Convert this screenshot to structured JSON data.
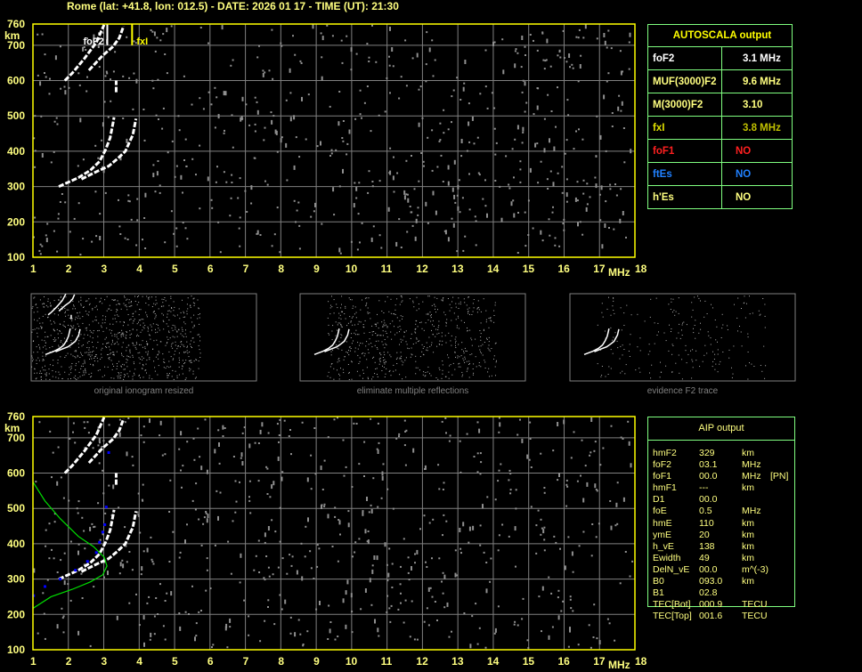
{
  "header": {
    "title": "Rome (lat: +41.8, lon: 012.5) - DATE: 2026 01 17 - TIME (UT): 21:30"
  },
  "autoscala": {
    "title": "AUTOSCALA output",
    "rows": [
      {
        "label": "foF2",
        "value": "3.1 MHz",
        "label_color": "#ffffff",
        "value_color": "#ffffff"
      },
      {
        "label": "MUF(3000)F2",
        "value": "9.6 MHz",
        "label_color": "#ffff80",
        "value_color": "#ffff80"
      },
      {
        "label": "M(3000)F2",
        "value": "3.10",
        "label_color": "#ffff80",
        "value_color": "#ffff80"
      },
      {
        "label": "fxI",
        "value": "3.8 MHz",
        "label_color": "#e0e000",
        "value_color": "#c0c000"
      },
      {
        "label": "foF1",
        "value": "NO",
        "label_color": "#ff2020",
        "value_color": "#ff2020"
      },
      {
        "label": "ftEs",
        "value": "NO",
        "label_color": "#2080ff",
        "value_color": "#2080ff"
      },
      {
        "label": "h'Es",
        "value": "NO",
        "label_color": "#ffff80",
        "value_color": "#ffff80"
      }
    ]
  },
  "aip": {
    "title": "AIP output",
    "rows": [
      [
        "hmF2",
        "329",
        "km",
        ""
      ],
      [
        "foF2",
        "03.1",
        "MHz",
        ""
      ],
      [
        "foF1",
        "00.0",
        "MHz",
        "[PN]"
      ],
      [
        "hmF1",
        "---",
        "km",
        ""
      ],
      [
        "D1",
        "00.0",
        "",
        ""
      ],
      [
        "foE",
        "0.5",
        "MHz",
        ""
      ],
      [
        "hmE",
        "110",
        "km",
        ""
      ],
      [
        "ymE",
        "20",
        "km",
        ""
      ],
      [
        "h_vE",
        "138",
        "km",
        ""
      ],
      [
        "Ewidth",
        "49",
        "km",
        ""
      ],
      [
        "DelN_vE",
        "00.0",
        "m^(-3)",
        ""
      ],
      [
        "B0",
        "093.0",
        "km",
        ""
      ],
      [
        "B1",
        "02.8",
        "",
        ""
      ],
      [
        "TEC[Bot]",
        "000.9",
        "TECU",
        ""
      ],
      [
        "TEC[Top]",
        "001.6",
        "TECU",
        ""
      ]
    ]
  },
  "thumbnails": [
    {
      "caption": "original ionogram resized"
    },
    {
      "caption": "eliminate multiple reflections"
    },
    {
      "caption": "evidence F2 trace"
    }
  ],
  "colors": {
    "axis": "#ffff00",
    "grid": "#808080",
    "trace": "#ffffff",
    "noise": "#909090",
    "profile": "#00e000",
    "fit": "#0000ff",
    "fxI": "#ffff00"
  },
  "chart_data": [
    {
      "type": "scatter",
      "xlabel": "MHz",
      "ylabel": "km",
      "xlim": [
        1,
        18
      ],
      "ylim": [
        100,
        760
      ],
      "xticks": [
        "1",
        "2",
        "3",
        "4",
        "5",
        "6",
        "7",
        "8",
        "9",
        "10",
        "11",
        "12",
        "13",
        "14",
        "15",
        "16",
        "17",
        "18"
      ],
      "yticks": [
        "100",
        "200",
        "300",
        "400",
        "500",
        "600",
        "700",
        "760"
      ],
      "grid": true,
      "annotations": [
        {
          "text": "foF2",
          "x": 3.1
        },
        {
          "text": "fxI",
          "x": 3.8
        }
      ],
      "traces": [
        {
          "points": [
            [
              1.73,
              300
            ],
            [
              2.28,
              325
            ],
            [
              2.62,
              346
            ],
            [
              2.88,
              371
            ],
            [
              3.05,
              404
            ],
            [
              3.18,
              438
            ],
            [
              3.26,
              479
            ],
            [
              3.29,
              496
            ]
          ]
        },
        {
          "points": [
            [
              2.37,
              321
            ],
            [
              2.79,
              342
            ],
            [
              3.14,
              358
            ],
            [
              3.39,
              379
            ],
            [
              3.61,
              400
            ],
            [
              3.74,
              429
            ],
            [
              3.82,
              446
            ],
            [
              3.91,
              492
            ]
          ]
        },
        {
          "points": [
            [
              1.9,
              600
            ],
            [
              2.11,
              621
            ],
            [
              2.45,
              662
            ],
            [
              2.79,
              708
            ],
            [
              3.01,
              758
            ]
          ]
        },
        {
          "points": [
            [
              2.58,
              629
            ],
            [
              2.97,
              671
            ],
            [
              3.26,
              696
            ],
            [
              3.44,
              721
            ],
            [
              3.56,
              754
            ]
          ]
        },
        {
          "points": [
            [
              3.35,
              567
            ],
            [
              3.35,
              600
            ]
          ]
        }
      ]
    },
    {
      "type": "line",
      "xlabel": "MHz",
      "ylabel": "km",
      "xlim": [
        1,
        18
      ],
      "ylim": [
        100,
        760
      ],
      "xticks": [
        "1",
        "2",
        "3",
        "4",
        "5",
        "6",
        "7",
        "8",
        "9",
        "10",
        "11",
        "12",
        "13",
        "14",
        "15",
        "16",
        "17",
        "18"
      ],
      "yticks": [
        "100",
        "200",
        "300",
        "400",
        "500",
        "600",
        "700",
        "760"
      ],
      "grid": true,
      "traces": [
        {
          "points": [
            [
              1.73,
              300
            ],
            [
              2.28,
              325
            ],
            [
              2.62,
              346
            ],
            [
              2.88,
              371
            ],
            [
              3.05,
              404
            ],
            [
              3.18,
              438
            ],
            [
              3.26,
              479
            ],
            [
              3.29,
              496
            ]
          ]
        },
        {
          "points": [
            [
              2.37,
              321
            ],
            [
              2.79,
              342
            ],
            [
              3.14,
              358
            ],
            [
              3.39,
              379
            ],
            [
              3.61,
              400
            ],
            [
              3.74,
              429
            ],
            [
              3.82,
              446
            ],
            [
              3.91,
              492
            ]
          ]
        },
        {
          "points": [
            [
              1.9,
              600
            ],
            [
              2.11,
              621
            ],
            [
              2.45,
              662
            ],
            [
              2.79,
              708
            ],
            [
              3.01,
              758
            ]
          ]
        },
        {
          "points": [
            [
              2.58,
              629
            ],
            [
              2.97,
              671
            ],
            [
              3.26,
              696
            ],
            [
              3.44,
              721
            ],
            [
              3.56,
              754
            ]
          ]
        },
        {
          "points": [
            [
              3.35,
              567
            ],
            [
              3.35,
              600
            ]
          ]
        }
      ],
      "profile": [
        [
          1,
          575
        ],
        [
          1.34,
          521
        ],
        [
          1.77,
          471
        ],
        [
          2.28,
          421
        ],
        [
          2.71,
          392
        ],
        [
          3.01,
          362
        ],
        [
          3.09,
          337
        ],
        [
          2.97,
          312
        ],
        [
          2.62,
          292
        ],
        [
          2.11,
          271
        ],
        [
          1.51,
          250
        ],
        [
          1,
          217
        ]
      ],
      "fit_points": [
        [
          1.02,
          253
        ],
        [
          1.34,
          279
        ],
        [
          1.77,
          300
        ],
        [
          2.2,
          325
        ],
        [
          2.54,
          350
        ],
        [
          2.79,
          375
        ],
        [
          2.88,
          404
        ],
        [
          2.97,
          433
        ],
        [
          3.03,
          454
        ],
        [
          3.07,
          504
        ],
        [
          3.14,
          658
        ]
      ]
    }
  ]
}
